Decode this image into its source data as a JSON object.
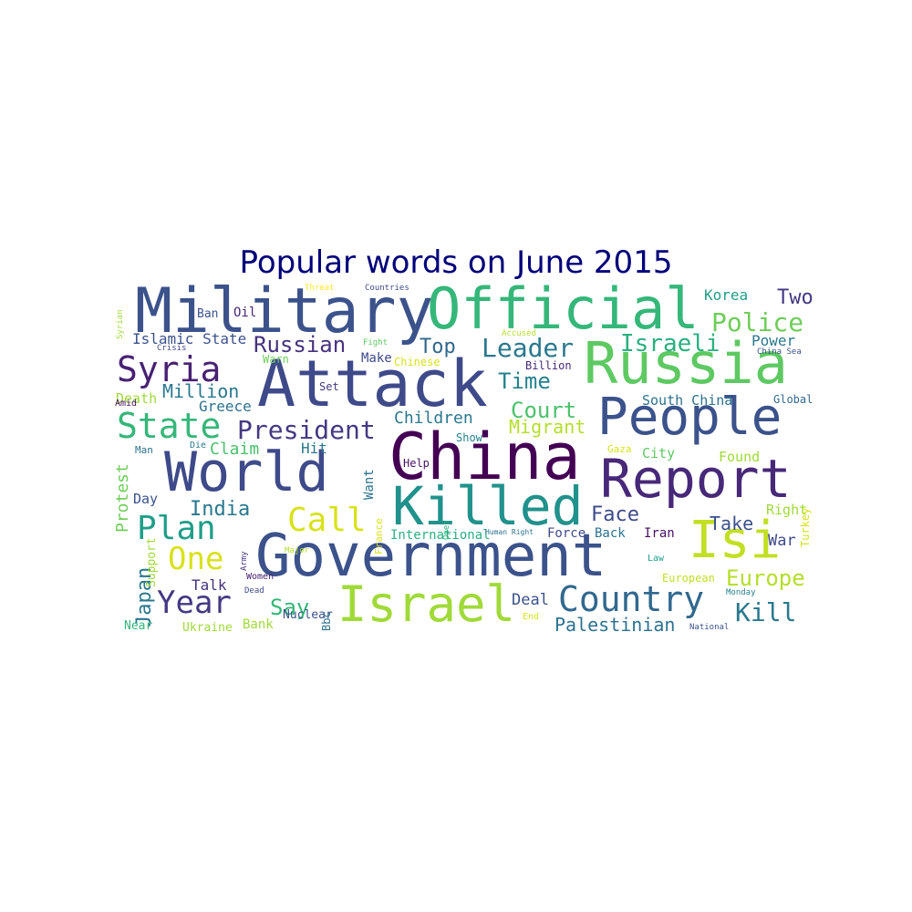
{
  "title": "Popular words on June 2015",
  "words": [
    {
      "text": "Military",
      "color": "#3b528b"
    },
    {
      "text": "Official",
      "color": "#35b779"
    },
    {
      "text": "Attack",
      "color": "#3e4a89"
    },
    {
      "text": "Russia",
      "color": "#5ec962"
    },
    {
      "text": "People",
      "color": "#3b528b"
    },
    {
      "text": "China",
      "color": "#440154"
    },
    {
      "text": "Report",
      "color": "#482878"
    },
    {
      "text": "World",
      "color": "#3e4a89"
    },
    {
      "text": "Killed",
      "color": "#21918c"
    },
    {
      "text": "Government",
      "color": "#3b528b"
    },
    {
      "text": "Isi",
      "color": "#c2df23"
    },
    {
      "text": "Israel",
      "color": "#a0da39"
    },
    {
      "text": "Syria",
      "color": "#482173"
    },
    {
      "text": "State",
      "color": "#35b779"
    },
    {
      "text": "Plan",
      "color": "#1f9e89"
    },
    {
      "text": "Call",
      "color": "#d8e219"
    },
    {
      "text": "Country",
      "color": "#31688e"
    },
    {
      "text": "Year",
      "color": "#443983"
    },
    {
      "text": "One",
      "color": "#d8e219"
    },
    {
      "text": "President",
      "color": "#443983"
    },
    {
      "text": "Leader",
      "color": "#2a788e"
    },
    {
      "text": "Police",
      "color": "#6ece58"
    },
    {
      "text": "Israeli",
      "color": "#2ab07f"
    },
    {
      "text": "Russian",
      "color": "#46327e"
    },
    {
      "text": "Top",
      "color": "#31688e"
    },
    {
      "text": "Time",
      "color": "#26828e"
    },
    {
      "text": "Court",
      "color": "#4ac16d"
    },
    {
      "text": "Europe",
      "color": "#b5de2b"
    },
    {
      "text": "Kill",
      "color": "#2a788e"
    },
    {
      "text": "Face",
      "color": "#3e4a89"
    },
    {
      "text": "Say",
      "color": "#35b779"
    },
    {
      "text": "India",
      "color": "#2a788e"
    },
    {
      "text": "Japan",
      "color": "#2a788e"
    },
    {
      "text": "Two",
      "color": "#443983"
    },
    {
      "text": "Korea",
      "color": "#1f9e89"
    },
    {
      "text": "Migrant",
      "color": "#b5de2b"
    },
    {
      "text": "Children",
      "color": "#2a788e"
    },
    {
      "text": "Take",
      "color": "#3b528b"
    },
    {
      "text": "Million",
      "color": "#2a788e"
    },
    {
      "text": "Protest",
      "color": "#6ece58"
    },
    {
      "text": "Claim",
      "color": "#4ac16d"
    },
    {
      "text": "South China",
      "color": "#2c728e"
    },
    {
      "text": "Palestinian",
      "color": "#2c728e"
    },
    {
      "text": "Deal",
      "color": "#3b528b"
    },
    {
      "text": "Islamic State",
      "color": "#3b528b"
    },
    {
      "text": "Greece",
      "color": "#2c728e"
    },
    {
      "text": "Death",
      "color": "#a0da39"
    },
    {
      "text": "Power",
      "color": "#2a788e"
    },
    {
      "text": "Right",
      "color": "#a0da39"
    },
    {
      "text": "War",
      "color": "#3e4a89"
    },
    {
      "text": "Found",
      "color": "#a0da39"
    },
    {
      "text": "City",
      "color": "#5ec962"
    },
    {
      "text": "Hit",
      "color": "#2a788e"
    },
    {
      "text": "Talk",
      "color": "#46327e"
    },
    {
      "text": "Day",
      "color": "#3b528b"
    },
    {
      "text": "Want",
      "color": "#2c728e"
    },
    {
      "text": "Make",
      "color": "#3e4a89"
    },
    {
      "text": "Bank",
      "color": "#a0da39"
    },
    {
      "text": "Iran",
      "color": "#471063"
    },
    {
      "text": "Force",
      "color": "#3e4a89"
    },
    {
      "text": "Back",
      "color": "#2c728e"
    },
    {
      "text": "International",
      "color": "#2ab07f"
    },
    {
      "text": "Nuclear",
      "color": "#3b528b"
    },
    {
      "text": "Support",
      "color": "#a0da39"
    },
    {
      "text": "Turkey",
      "color": "#d8e219"
    },
    {
      "text": "Ukraine",
      "color": "#a0da39"
    },
    {
      "text": "European",
      "color": "#c2df23"
    },
    {
      "text": "Oil",
      "color": "#482878"
    },
    {
      "text": "Ban",
      "color": "#3b528b"
    },
    {
      "text": "Set",
      "color": "#443983"
    },
    {
      "text": "Chinese",
      "color": "#d8e219"
    },
    {
      "text": "Warn",
      "color": "#6ece58"
    },
    {
      "text": "Billion",
      "color": "#482878"
    },
    {
      "text": "Global",
      "color": "#31688e"
    },
    {
      "text": "Near",
      "color": "#35b779"
    },
    {
      "text": "Show",
      "color": "#26828e"
    },
    {
      "text": "Help",
      "color": "#471063"
    },
    {
      "text": "Gaza",
      "color": "#d8e219"
    },
    {
      "text": "Man",
      "color": "#2c728e"
    },
    {
      "text": "Die",
      "color": "#2a788e"
    },
    {
      "text": "Amid",
      "color": "#471063"
    },
    {
      "text": "Bbc",
      "color": "#2c728e"
    },
    {
      "text": "End",
      "color": "#d8e219"
    },
    {
      "text": "France",
      "color": "#d8e219"
    },
    {
      "text": "Law",
      "color": "#1f9e89"
    },
    {
      "text": "Women",
      "color": "#482173"
    },
    {
      "text": "Dead",
      "color": "#3e4a89"
    },
    {
      "text": "Army",
      "color": "#46327e"
    },
    {
      "text": "Major",
      "color": "#b5de2b"
    },
    {
      "text": "Open",
      "color": "#2ab07f"
    },
    {
      "text": "Human Right",
      "color": "#2c728e"
    },
    {
      "text": "Monday",
      "color": "#26828e"
    },
    {
      "text": "National",
      "color": "#3b528b"
    },
    {
      "text": "Threat",
      "color": "#fde725"
    },
    {
      "text": "Countries",
      "color": "#3e4a89"
    },
    {
      "text": "Accused",
      "color": "#b5de2b"
    },
    {
      "text": "Fight",
      "color": "#5ec962"
    },
    {
      "text": "Crisis",
      "color": "#3e4a89"
    },
    {
      "text": "Syrian",
      "color": "#a0da39"
    },
    {
      "text": "China Sea",
      "color": "#3b528b"
    }
  ]
}
